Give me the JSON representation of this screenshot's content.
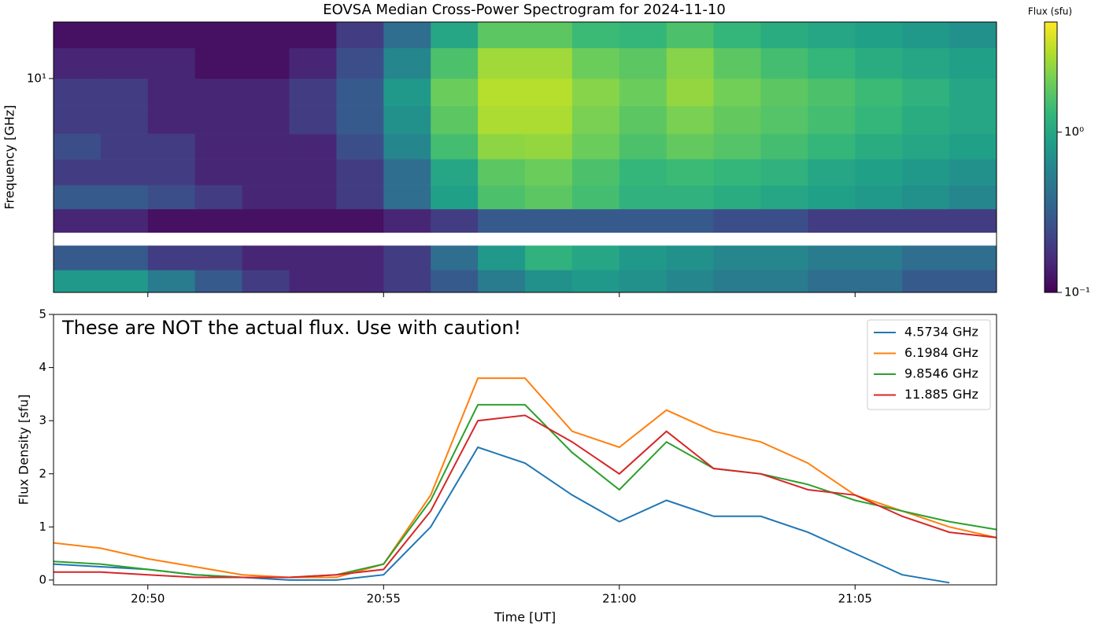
{
  "chart_data": [
    {
      "type": "heatmap",
      "title": "EOVSA Median Cross-Power Spectrogram for 2024-11-10",
      "ylabel": "Frequency [GHz]",
      "x_bins": [
        "20:48",
        "20:49",
        "20:50",
        "20:51",
        "20:52",
        "20:53",
        "20:54",
        "20:55",
        "20:56",
        "20:57",
        "20:58",
        "20:59",
        "21:00",
        "21:01",
        "21:02",
        "21:03",
        "21:04",
        "21:05",
        "21:06",
        "21:07",
        "21:08"
      ],
      "y_bins": [
        2.8,
        3.2,
        3.7,
        4.0,
        4.6,
        5.3,
        6.2,
        7.2,
        8.5,
        10,
        12,
        14
      ],
      "values": [
        [
          0.8,
          0.8,
          0.5,
          0.3,
          0.2,
          0.15,
          0.15,
          0.2,
          0.3,
          0.5,
          0.7,
          0.8,
          0.7,
          0.6,
          0.5,
          0.5,
          0.4,
          0.4,
          0.3,
          0.3
        ],
        [
          0.3,
          0.3,
          0.2,
          0.2,
          0.15,
          0.15,
          0.15,
          0.2,
          0.4,
          0.8,
          1.2,
          1.0,
          0.8,
          0.7,
          0.6,
          0.6,
          0.5,
          0.5,
          0.4,
          0.4
        ],
        [
          null,
          null,
          null,
          null,
          null,
          null,
          null,
          null,
          null,
          null,
          null,
          null,
          null,
          null,
          null,
          null,
          null,
          null,
          null,
          null
        ],
        [
          0.15,
          0.15,
          0.12,
          0.12,
          0.12,
          0.12,
          0.12,
          0.15,
          0.2,
          0.3,
          0.3,
          0.3,
          0.3,
          0.3,
          0.25,
          0.25,
          0.2,
          0.2,
          0.2,
          0.2
        ],
        [
          0.3,
          0.3,
          0.25,
          0.2,
          0.15,
          0.15,
          0.2,
          0.4,
          0.9,
          1.6,
          1.8,
          1.5,
          1.2,
          1.2,
          1.1,
          1.0,
          0.9,
          0.8,
          0.7,
          0.6
        ],
        [
          0.2,
          0.2,
          0.2,
          0.15,
          0.15,
          0.15,
          0.2,
          0.4,
          1.0,
          1.8,
          2.0,
          1.6,
          1.3,
          1.4,
          1.3,
          1.2,
          1.0,
          0.9,
          0.8,
          0.7
        ],
        [
          0.25,
          0.2,
          0.2,
          0.15,
          0.15,
          0.15,
          0.25,
          0.6,
          1.5,
          2.5,
          2.6,
          2.0,
          1.6,
          1.9,
          1.7,
          1.5,
          1.3,
          1.1,
          1.0,
          0.9
        ],
        [
          0.2,
          0.2,
          0.15,
          0.15,
          0.15,
          0.2,
          0.3,
          0.7,
          1.8,
          3.0,
          3.0,
          2.2,
          1.8,
          2.2,
          1.9,
          1.7,
          1.5,
          1.3,
          1.1,
          1.0
        ],
        [
          0.2,
          0.2,
          0.15,
          0.15,
          0.15,
          0.2,
          0.3,
          0.8,
          2.0,
          3.2,
          3.2,
          2.4,
          2.0,
          2.6,
          2.1,
          1.8,
          1.6,
          1.4,
          1.2,
          1.0
        ],
        [
          0.15,
          0.15,
          0.15,
          0.12,
          0.12,
          0.15,
          0.25,
          0.6,
          1.6,
          2.8,
          2.8,
          2.0,
          1.8,
          2.4,
          1.8,
          1.5,
          1.3,
          1.1,
          1.0,
          0.9
        ],
        [
          0.12,
          0.12,
          0.12,
          0.12,
          0.12,
          0.12,
          0.2,
          0.4,
          1.0,
          1.8,
          1.8,
          1.4,
          1.3,
          1.6,
          1.3,
          1.1,
          1.0,
          0.9,
          0.8,
          0.7
        ]
      ],
      "xlim": [
        "20:48",
        "21:08"
      ],
      "xticks": [
        "20:50",
        "20:55",
        "21:00",
        "21:05"
      ],
      "ylim": [
        2.8,
        14
      ],
      "yticks": [
        {
          "value": 10,
          "label": "10¹"
        }
      ],
      "ylog": true,
      "colormap": "viridis",
      "colorbar": {
        "label": "Flux (sfu)",
        "lim": [
          0.1,
          4.86
        ],
        "log": true,
        "ticks": [
          {
            "value": 0.1,
            "label": "10⁻¹"
          },
          {
            "value": 1,
            "label": "10⁰"
          }
        ]
      }
    },
    {
      "type": "line",
      "annotation": "These are NOT the actual flux. Use with caution!",
      "xlabel": "Time [UT]",
      "ylabel": "Flux Density [sfu]",
      "x": [
        "20:48",
        "20:49",
        "20:50",
        "20:51",
        "20:52",
        "20:53",
        "20:54",
        "20:55",
        "20:56",
        "20:57",
        "20:58",
        "20:59",
        "21:00",
        "21:01",
        "21:02",
        "21:03",
        "21:04",
        "21:05",
        "21:06",
        "21:07",
        "21:08"
      ],
      "series": [
        {
          "name": "4.5734 GHz",
          "color": "#1f77b4",
          "values": [
            0.3,
            0.25,
            0.2,
            0.1,
            0.05,
            0.0,
            0.0,
            0.1,
            1.0,
            2.5,
            2.2,
            1.6,
            1.1,
            1.5,
            1.2,
            1.2,
            0.9,
            0.5,
            0.1,
            -0.05,
            null
          ]
        },
        {
          "name": "6.1984 GHz",
          "color": "#ff7f0e",
          "values": [
            0.7,
            0.6,
            0.4,
            0.25,
            0.1,
            0.05,
            0.05,
            0.3,
            1.6,
            3.8,
            3.8,
            2.8,
            2.5,
            3.2,
            2.8,
            2.6,
            2.2,
            1.6,
            1.3,
            1.0,
            0.8
          ]
        },
        {
          "name": "9.8546 GHz",
          "color": "#2ca02c",
          "values": [
            0.35,
            0.3,
            0.2,
            0.1,
            0.05,
            0.05,
            0.1,
            0.3,
            1.5,
            3.3,
            3.3,
            2.4,
            1.7,
            2.6,
            2.1,
            2.0,
            1.8,
            1.5,
            1.3,
            1.1,
            0.95
          ]
        },
        {
          "name": "11.885 GHz",
          "color": "#d62728",
          "values": [
            0.15,
            0.15,
            0.1,
            0.05,
            0.05,
            0.05,
            0.1,
            0.2,
            1.3,
            3.0,
            3.1,
            2.6,
            2.0,
            2.8,
            2.1,
            2.0,
            1.7,
            1.6,
            1.2,
            0.9,
            0.8
          ]
        }
      ],
      "xlim": [
        "20:48",
        "21:08"
      ],
      "xticks": [
        "20:50",
        "20:55",
        "21:00",
        "21:05"
      ],
      "ylim": [
        -0.09,
        5
      ],
      "yticks": [
        0,
        1,
        2,
        3,
        4,
        5
      ],
      "legend": "upper right"
    }
  ]
}
